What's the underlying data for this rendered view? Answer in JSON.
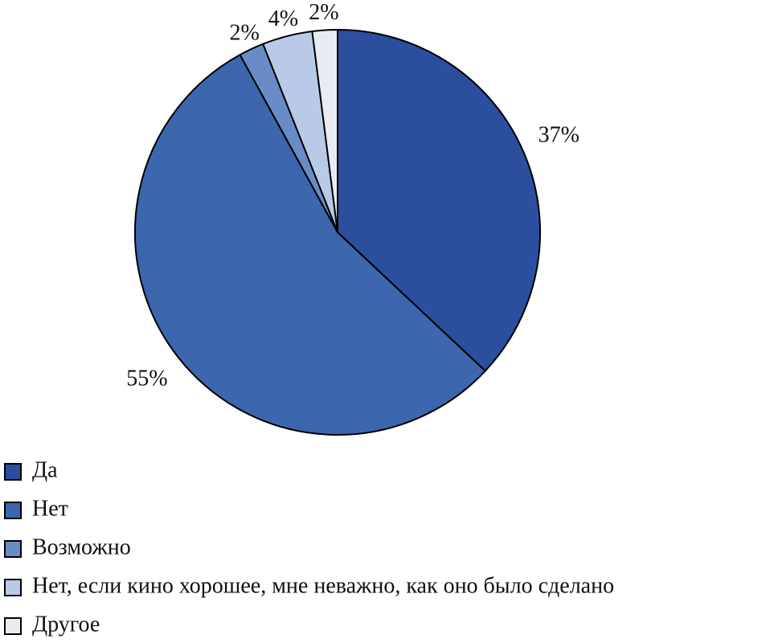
{
  "chart_data": {
    "type": "pie",
    "categories": [
      "Да",
      "Нет",
      "Возможно",
      "Нет, если кино хорошее, мне неважно, как оно было сделано",
      "Другое"
    ],
    "values": [
      37,
      55,
      2,
      4,
      2
    ],
    "value_labels": [
      "37%",
      "55%",
      "2%",
      "4%",
      "2%"
    ],
    "colors": [
      "#2b4f9e",
      "#3c66ae",
      "#6a8cc6",
      "#b9cae9",
      "#e8ecf2"
    ]
  }
}
